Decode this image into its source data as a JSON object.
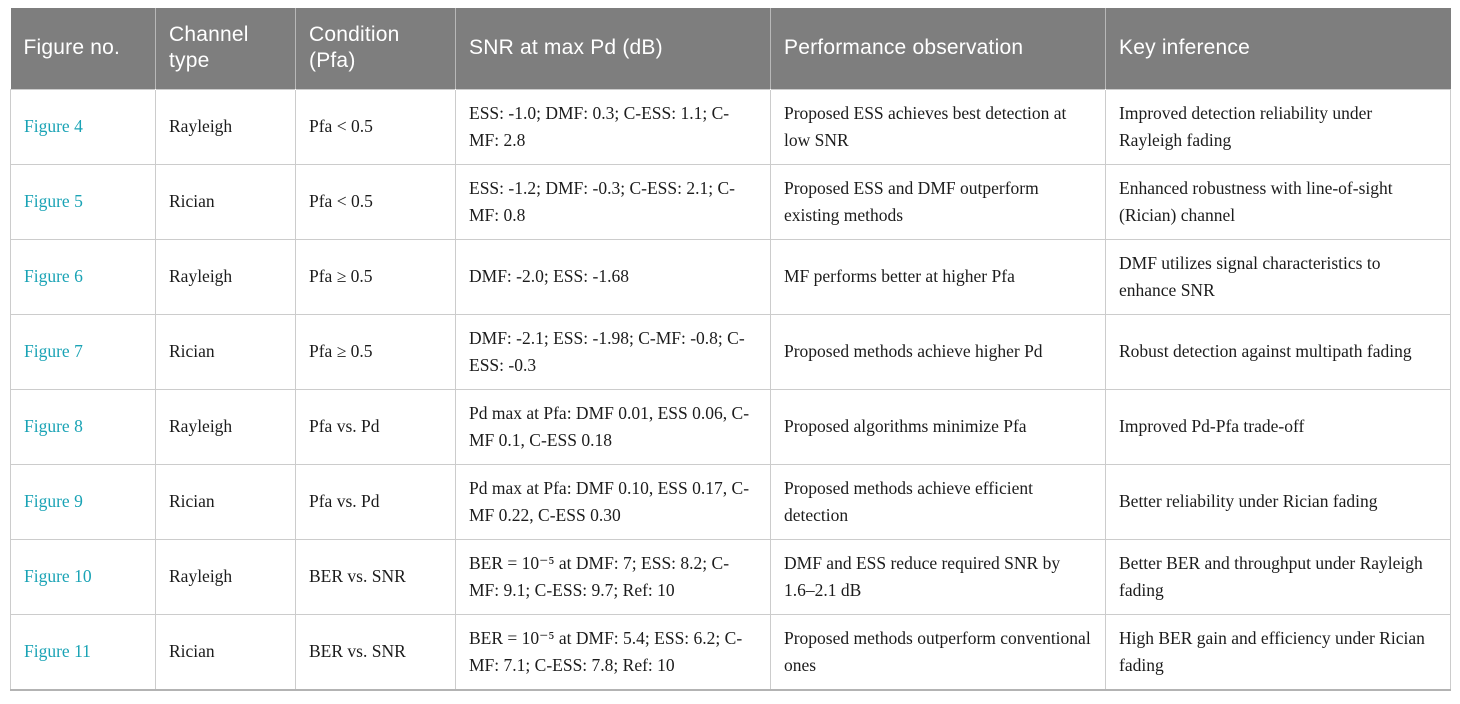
{
  "table": {
    "columns": [
      {
        "label": "Figure no."
      },
      {
        "label": "Channel type"
      },
      {
        "label": "Condition (Pfa)"
      },
      {
        "label": "SNR at max Pd (dB)"
      },
      {
        "label": "Performance observation"
      },
      {
        "label": "Key inference"
      }
    ],
    "rows": [
      {
        "figure": "Figure 4",
        "channel": "Rayleigh",
        "condition": "Pfa < 0.5",
        "snr": "ESS: -1.0; DMF: 0.3; C-ESS: 1.1; C-MF: 2.8",
        "performance": "Proposed ESS achieves best detection at low SNR",
        "inference": "Improved detection reliability under Rayleigh fading"
      },
      {
        "figure": "Figure 5",
        "channel": "Rician",
        "condition": "Pfa < 0.5",
        "snr": "ESS: -1.2; DMF: -0.3; C-ESS: 2.1; C-MF: 0.8",
        "performance": "Proposed ESS and DMF outperform existing methods",
        "inference": "Enhanced robustness with line-of-sight (Rician) channel"
      },
      {
        "figure": "Figure 6",
        "channel": "Rayleigh",
        "condition": "Pfa ≥ 0.5",
        "snr": "DMF: -2.0; ESS: -1.68",
        "performance": "MF performs better at higher Pfa",
        "inference": "DMF utilizes signal characteristics to enhance SNR"
      },
      {
        "figure": "Figure 7",
        "channel": "Rician",
        "condition": "Pfa ≥ 0.5",
        "snr": "DMF: -2.1; ESS: -1.98; C-MF: -0.8; C-ESS: -0.3",
        "performance": "Proposed methods achieve higher Pd",
        "inference": "Robust detection against multipath fading"
      },
      {
        "figure": "Figure 8",
        "channel": "Rayleigh",
        "condition": "Pfa vs. Pd",
        "snr": "Pd max at Pfa: DMF 0.01, ESS 0.06, C-MF 0.1, C-ESS 0.18",
        "performance": "Proposed algorithms minimize Pfa",
        "inference": "Improved Pd-Pfa trade-off"
      },
      {
        "figure": "Figure 9",
        "channel": "Rician",
        "condition": "Pfa vs. Pd",
        "snr": "Pd max at Pfa: DMF 0.10, ESS 0.17, C-MF 0.22, C-ESS 0.30",
        "performance": "Proposed methods achieve efficient detection",
        "inference": "Better reliability under Rician fading"
      },
      {
        "figure": "Figure 10",
        "channel": "Rayleigh",
        "condition": "BER vs. SNR",
        "snr": "BER = 10⁻⁵ at DMF: 7; ESS: 8.2; C-MF: 9.1; C-ESS: 9.7; Ref: 10",
        "performance": "DMF and ESS reduce required SNR by 1.6–2.1 dB",
        "inference": "Better BER and throughput under Rayleigh fading"
      },
      {
        "figure": "Figure 11",
        "channel": "Rician",
        "condition": "BER vs. SNR",
        "snr": "BER = 10⁻⁵ at DMF: 5.4; ESS: 6.2; C-MF: 7.1; C-ESS: 7.8; Ref: 10",
        "performance": "Proposed methods outperform conventional ones",
        "inference": "High BER gain and efficiency under Rician fading"
      }
    ]
  },
  "colors": {
    "header_bg": "#7e7e7e",
    "header_text": "#ffffff",
    "figure_link": "#1aa3b5",
    "cell_border": "#cccccc",
    "body_text": "#1c1c1c"
  }
}
